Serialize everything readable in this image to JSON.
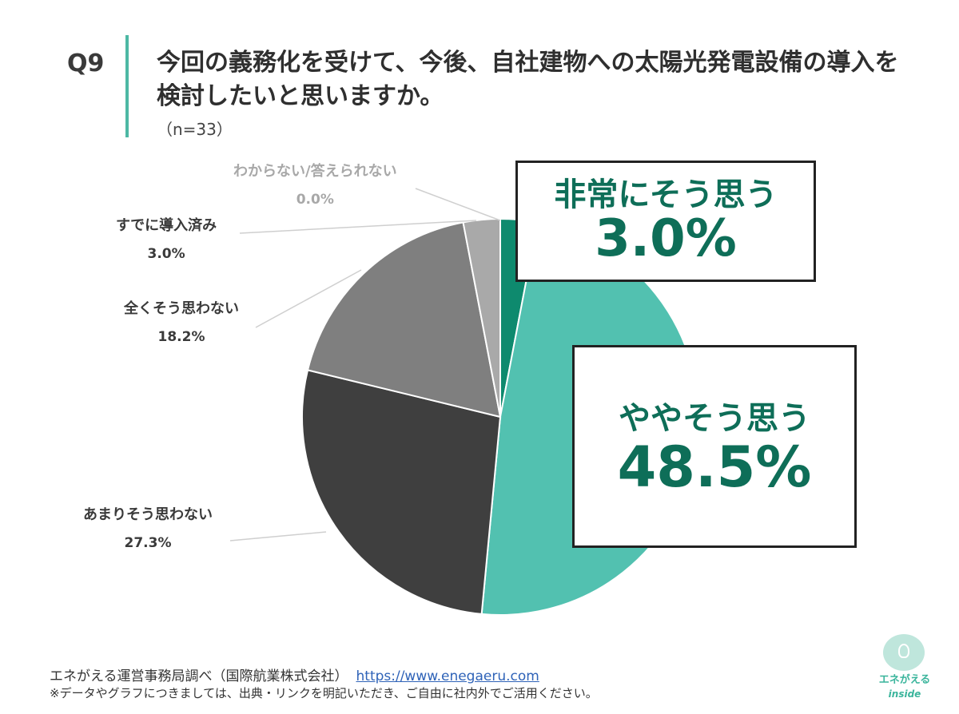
{
  "header": {
    "q_label": "Q9",
    "title": "今回の義務化を受けて、今後、自社建物への太陽光発電設備の導入を検討したいと思いますか。",
    "n": "（n=33）"
  },
  "chart_data": {
    "type": "pie",
    "title": "今回の義務化を受けて、今後、自社建物への太陽光発電設備の導入を検討したいと思いますか。",
    "slices": [
      {
        "label": "非常にそう思う",
        "value": 3.0,
        "display": "3.0%",
        "color": "#0e8a6e"
      },
      {
        "label": "ややそう思う",
        "value": 48.5,
        "display": "48.5%",
        "color": "#52c1b0"
      },
      {
        "label": "あまりそう思わない",
        "value": 27.3,
        "display": "27.3%",
        "color": "#3f3f3f"
      },
      {
        "label": "全くそう思わない",
        "value": 18.2,
        "display": "18.2%",
        "color": "#7f7f7f"
      },
      {
        "label": "すでに導入済み",
        "value": 3.0,
        "display": "3.0%",
        "color": "#a9a9a9"
      },
      {
        "label": "わからない/答えられない",
        "value": 0.0,
        "display": "0.0%",
        "color": "#d0d0d0"
      }
    ],
    "start": "12 o'clock",
    "direction": "clockwise"
  },
  "callouts": {
    "strongly_agree": {
      "name": "非常にそう思う",
      "pct": "3.0%"
    },
    "somewhat_agree": {
      "name": "ややそう思う",
      "pct": "48.5%"
    }
  },
  "labels": {
    "dont_know": {
      "name": "わからない/答えられない",
      "pct": "0.0%"
    },
    "installed": {
      "name": "すでに導入済み",
      "pct": "3.0%"
    },
    "not_at_all": {
      "name": "全くそう思わない",
      "pct": "18.2%"
    },
    "not_really": {
      "name": "あまりそう思わない",
      "pct": "27.3%"
    }
  },
  "footer": {
    "source": "エネがえる運営事務局調べ（国際航業株式会社）",
    "url": "https://www.enegaeru.com",
    "note": "※データやグラフにつきましては、出典・リンクを明記いただき、ご自由に社内外でご活用ください。"
  },
  "logo": {
    "text": "エネがえる",
    "sub": "inside"
  }
}
